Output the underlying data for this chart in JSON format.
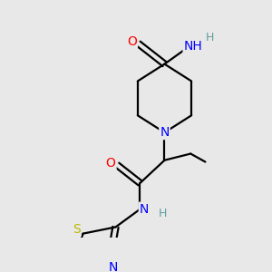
{
  "bg_color": "#e8e8e8",
  "atom_colors": {
    "C": "#000000",
    "N": "#0000ff",
    "O": "#ff0000",
    "S": "#b8b800",
    "H": "#5f9ea0"
  },
  "bond_color": "#000000",
  "bond_width": 1.6,
  "figsize": [
    3.0,
    3.0
  ],
  "dpi": 100
}
